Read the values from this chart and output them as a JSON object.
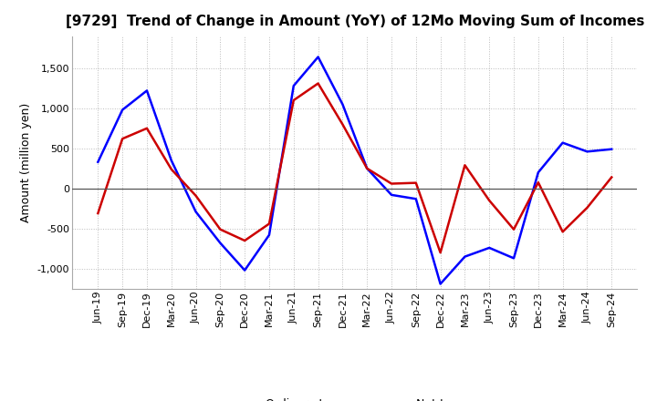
{
  "title": "[9729]  Trend of Change in Amount (YoY) of 12Mo Moving Sum of Incomes",
  "ylabel": "Amount (million yen)",
  "x_labels": [
    "Jun-19",
    "Sep-19",
    "Dec-19",
    "Mar-20",
    "Jun-20",
    "Sep-20",
    "Dec-20",
    "Mar-21",
    "Jun-21",
    "Sep-21",
    "Dec-21",
    "Mar-22",
    "Jun-22",
    "Sep-22",
    "Dec-22",
    "Mar-23",
    "Jun-23",
    "Sep-23",
    "Dec-23",
    "Mar-24",
    "Jun-24",
    "Sep-24"
  ],
  "ordinary_income": [
    330,
    980,
    1220,
    350,
    -290,
    -680,
    -1020,
    -580,
    1280,
    1640,
    1050,
    250,
    -80,
    -130,
    -1190,
    -850,
    -740,
    -870,
    200,
    570,
    460,
    490
  ],
  "net_income": [
    -310,
    620,
    750,
    240,
    -90,
    -510,
    -650,
    -440,
    1100,
    1310,
    800,
    250,
    60,
    70,
    -800,
    290,
    -150,
    -510,
    75,
    -540,
    -240,
    140
  ],
  "ordinary_color": "#0000ff",
  "net_color": "#cc0000",
  "ylim": [
    -1250,
    1900
  ],
  "yticks": [
    -1000,
    -500,
    0,
    500,
    1000,
    1500
  ],
  "background_color": "#ffffff",
  "grid_color": "#bbbbbb",
  "title_fontsize": 11,
  "axis_fontsize": 9,
  "tick_fontsize": 8,
  "legend_fontsize": 9,
  "linewidth": 1.8
}
